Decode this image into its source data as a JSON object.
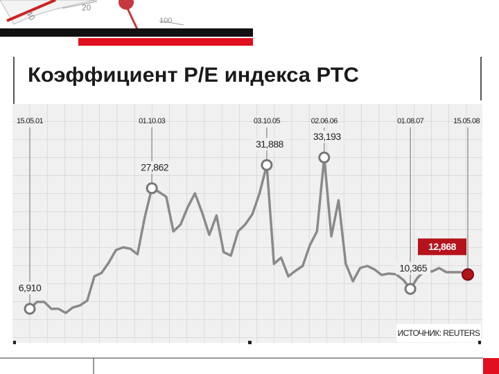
{
  "decoration": {
    "gauge_labels": [
      "40",
      "20",
      "100"
    ]
  },
  "chart_data": {
    "type": "line",
    "title": "Коэффициент P/E индекса РТС",
    "source": "ИСТОЧНИК: REUTERS",
    "categories": [
      "15.05.01",
      null,
      null,
      null,
      null,
      null,
      null,
      null,
      null,
      null,
      null,
      null,
      null,
      null,
      null,
      null,
      null,
      "01.10.03",
      null,
      null,
      null,
      null,
      null,
      null,
      null,
      null,
      null,
      null,
      null,
      null,
      null,
      null,
      null,
      "03.10.05",
      null,
      null,
      null,
      null,
      null,
      null,
      null,
      "02.06.06",
      null,
      null,
      null,
      null,
      null,
      null,
      null,
      null,
      null,
      null,
      null,
      "01.08.07",
      null,
      null,
      null,
      null,
      null,
      null,
      null,
      "15.05.08"
    ],
    "series": [
      {
        "name": "P/E",
        "color": "#8a8a8a",
        "values": [
          6.91,
          8.11,
          8.11,
          6.91,
          6.91,
          6.19,
          7.15,
          7.51,
          8.35,
          12.55,
          13.15,
          14.95,
          17.11,
          17.59,
          17.35,
          16.39,
          22.76,
          27.862,
          27.2,
          26.36,
          20.35,
          21.56,
          24.56,
          26.96,
          23.6,
          19.75,
          23.12,
          16.75,
          16.15,
          20.35,
          21.56,
          23.36,
          26.96,
          31.888,
          14.71,
          15.79,
          12.55,
          13.51,
          14.35,
          17.95,
          20.35,
          33.193,
          19.51,
          25.76,
          14.71,
          11.71,
          13.99,
          14.35,
          13.75,
          12.79,
          13.03,
          12.91,
          11.95,
          10.365,
          12.31,
          13.51,
          13.39,
          13.99,
          13.27,
          13.27,
          13.27,
          12.868
        ],
        "value_labels": [
          "6,910",
          null,
          null,
          null,
          null,
          null,
          null,
          null,
          null,
          null,
          null,
          null,
          null,
          null,
          null,
          null,
          null,
          "27,862",
          null,
          null,
          null,
          null,
          null,
          null,
          null,
          null,
          null,
          null,
          null,
          null,
          null,
          null,
          null,
          "31,888",
          null,
          null,
          null,
          null,
          null,
          null,
          null,
          "33,193",
          null,
          null,
          null,
          null,
          null,
          null,
          null,
          null,
          null,
          null,
          null,
          "10,365",
          null,
          null,
          null,
          null,
          null,
          null,
          null,
          "12,868"
        ]
      }
    ],
    "highlight_color": "#b5121b",
    "ylim": [
      1,
      42.5
    ],
    "grid": true
  }
}
